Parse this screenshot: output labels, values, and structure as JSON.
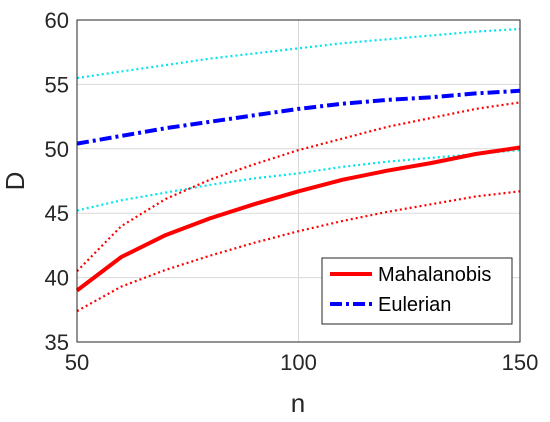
{
  "chart_data": {
    "type": "line",
    "xlabel": "n",
    "ylabel": "D",
    "xlim": [
      50,
      150
    ],
    "ylim": [
      35,
      60
    ],
    "xticks": [
      50,
      100,
      150
    ],
    "yticks": [
      35,
      40,
      45,
      50,
      55,
      60
    ],
    "grid": true,
    "legend_position": "bottom-right",
    "legend": [
      "Mahalanobis",
      "Eulerian"
    ],
    "series": [
      {
        "name": "Mahalanobis",
        "in_legend": true,
        "color": "#ff0000",
        "style": "solid",
        "x": [
          50,
          60,
          70,
          80,
          90,
          100,
          110,
          120,
          130,
          140,
          150
        ],
        "y": [
          39.0,
          41.6,
          43.3,
          44.6,
          45.7,
          46.7,
          47.6,
          48.3,
          48.9,
          49.6,
          50.1
        ]
      },
      {
        "name": "Eulerian",
        "in_legend": true,
        "color": "#0000ff",
        "style": "dashdot",
        "x": [
          50,
          60,
          70,
          80,
          90,
          100,
          110,
          120,
          130,
          140,
          150
        ],
        "y": [
          50.4,
          51.0,
          51.6,
          52.1,
          52.6,
          53.1,
          53.5,
          53.8,
          54.0,
          54.3,
          54.5
        ]
      },
      {
        "color": "#ff0000",
        "style": "dotted",
        "x": [
          50,
          60,
          70,
          80,
          90,
          100,
          110,
          120,
          130,
          140,
          150
        ],
        "y": [
          40.5,
          44.0,
          46.1,
          47.6,
          48.8,
          49.9,
          50.8,
          51.7,
          52.4,
          53.1,
          53.6
        ]
      },
      {
        "color": "#ff0000",
        "style": "dotted",
        "x": [
          50,
          60,
          70,
          80,
          90,
          100,
          110,
          120,
          130,
          140,
          150
        ],
        "y": [
          37.4,
          39.3,
          40.6,
          41.7,
          42.7,
          43.6,
          44.4,
          45.1,
          45.7,
          46.3,
          46.7
        ]
      },
      {
        "color": "#00e5ee",
        "style": "dotted",
        "x": [
          50,
          60,
          70,
          80,
          90,
          100,
          110,
          120,
          130,
          140,
          150
        ],
        "y": [
          55.5,
          56.0,
          56.5,
          57.0,
          57.4,
          57.8,
          58.2,
          58.5,
          58.8,
          59.1,
          59.3
        ]
      },
      {
        "color": "#00e5ee",
        "style": "dotted",
        "x": [
          50,
          60,
          70,
          80,
          90,
          100,
          110,
          120,
          130,
          140,
          150
        ],
        "y": [
          45.2,
          46.0,
          46.6,
          47.2,
          47.7,
          48.1,
          48.6,
          49.0,
          49.3,
          49.6,
          49.9
        ]
      }
    ]
  }
}
